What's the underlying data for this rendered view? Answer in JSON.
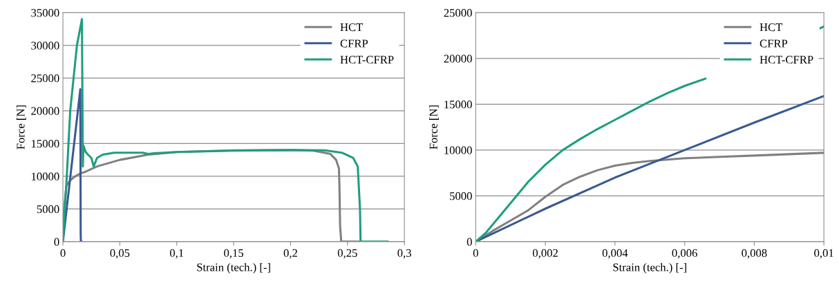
{
  "chart_data": [
    {
      "type": "line",
      "xlabel": "Strain (tech.) [-]",
      "ylabel": "Force [N]",
      "grid": "y",
      "legend": "top right",
      "marker": "none",
      "line_style": "solid",
      "xlim": [
        0,
        0.3
      ],
      "xticks": [
        0,
        {
          "value": 0.05,
          "label": "0,05"
        },
        {
          "value": 0.1,
          "label": "0,1"
        },
        {
          "value": 0.15,
          "label": "0,15"
        },
        {
          "value": 0.2,
          "label": "0,2"
        },
        {
          "value": 0.25,
          "label": "0,25"
        },
        {
          "value": 0.3,
          "label": "0,3"
        }
      ],
      "ylim": [
        0,
        35000
      ],
      "yticks": [
        0,
        5000,
        10000,
        15000,
        20000,
        25000,
        30000,
        35000
      ],
      "series": [
        {
          "name": "HCT",
          "color": "#808080",
          "x": [
            0,
            0.001,
            0.003,
            0.006,
            0.01,
            0.015,
            0.02,
            0.03,
            0.05,
            0.075,
            0.1,
            0.15,
            0.2,
            0.22,
            0.235,
            0.24,
            0.2425,
            0.243,
            0.2435,
            0.2445,
            0.26
          ],
          "values": [
            0,
            5000,
            8500,
            9300,
            9900,
            10400,
            10700,
            11500,
            12500,
            13300,
            13700,
            13950,
            14000,
            13900,
            13400,
            12500,
            11200,
            8000,
            2500,
            0,
            0
          ]
        },
        {
          "name": "CFRP",
          "color": "#3a5a92",
          "x": [
            0,
            0.0153,
            0.0156,
            0.0158,
            0.0165
          ],
          "values": [
            0,
            23300,
            1000,
            0,
            0
          ]
        },
        {
          "name": "HCT-CFRP",
          "color": "#1f9e7e",
          "x": [
            0,
            0.0034,
            0.0064,
            0.0123,
            0.0167,
            0.0175,
            0.018,
            0.02,
            0.022,
            0.025,
            0.027,
            0.03,
            0.035,
            0.045,
            0.06,
            0.07,
            0.075,
            0.08,
            0.1,
            0.15,
            0.2,
            0.23,
            0.245,
            0.255,
            0.259,
            0.261,
            0.2615,
            0.2857
          ],
          "values": [
            0,
            10000,
            20000,
            30000,
            34000,
            11500,
            14700,
            13700,
            13300,
            12800,
            11500,
            12800,
            13300,
            13600,
            13600,
            13600,
            13400,
            13500,
            13700,
            13900,
            14000,
            13950,
            13600,
            12800,
            11500,
            5000,
            0,
            0
          ]
        }
      ]
    },
    {
      "type": "line",
      "xlabel": "Strain (tech.) [-]",
      "ylabel": "Force [N]",
      "grid": "y",
      "legend": "top right",
      "marker": "none",
      "line_style": "solid",
      "xlim": [
        0,
        0.01
      ],
      "xticks": [
        0,
        {
          "value": 0.002,
          "label": "0,002"
        },
        {
          "value": 0.004,
          "label": "0,004"
        },
        {
          "value": 0.006,
          "label": "0,006"
        },
        {
          "value": 0.008,
          "label": "0,008"
        },
        {
          "value": 0.01,
          "label": "0,01"
        }
      ],
      "ylim": [
        0,
        25000
      ],
      "yticks": [
        0,
        5000,
        10000,
        15000,
        20000,
        25000
      ],
      "series": [
        {
          "name": "HCT",
          "color": "#808080",
          "x": [
            0,
            0.0005,
            0.001,
            0.0015,
            0.002,
            0.0025,
            0.003,
            0.0035,
            0.004,
            0.0045,
            0.005,
            0.006,
            0.007,
            0.008,
            0.009,
            0.01
          ],
          "values": [
            0,
            1200,
            2300,
            3400,
            4900,
            6200,
            7100,
            7800,
            8300,
            8600,
            8800,
            9100,
            9250,
            9400,
            9550,
            9700
          ]
        },
        {
          "name": "CFRP",
          "color": "#3a5a92",
          "x": [
            0,
            0.002,
            0.004,
            0.006,
            0.008,
            0.01
          ],
          "values": [
            0,
            3600,
            7000,
            10000,
            13000,
            15900
          ]
        },
        {
          "name": "HCT-CFRP",
          "color": "#1f9e7e",
          "x": [
            0,
            0.0003,
            0.001,
            0.0015,
            0.002,
            0.0025,
            0.003,
            0.0035,
            0.004,
            0.0045,
            0.005,
            0.0055,
            0.006,
            0.0066,
            0.008,
            0.0099,
            0.01
          ],
          "values": [
            0,
            1000,
            4200,
            6500,
            8400,
            10000,
            11200,
            12300,
            13300,
            14300,
            15300,
            16200,
            17000,
            17800,
            null,
            23300,
            23500
          ]
        }
      ]
    }
  ]
}
